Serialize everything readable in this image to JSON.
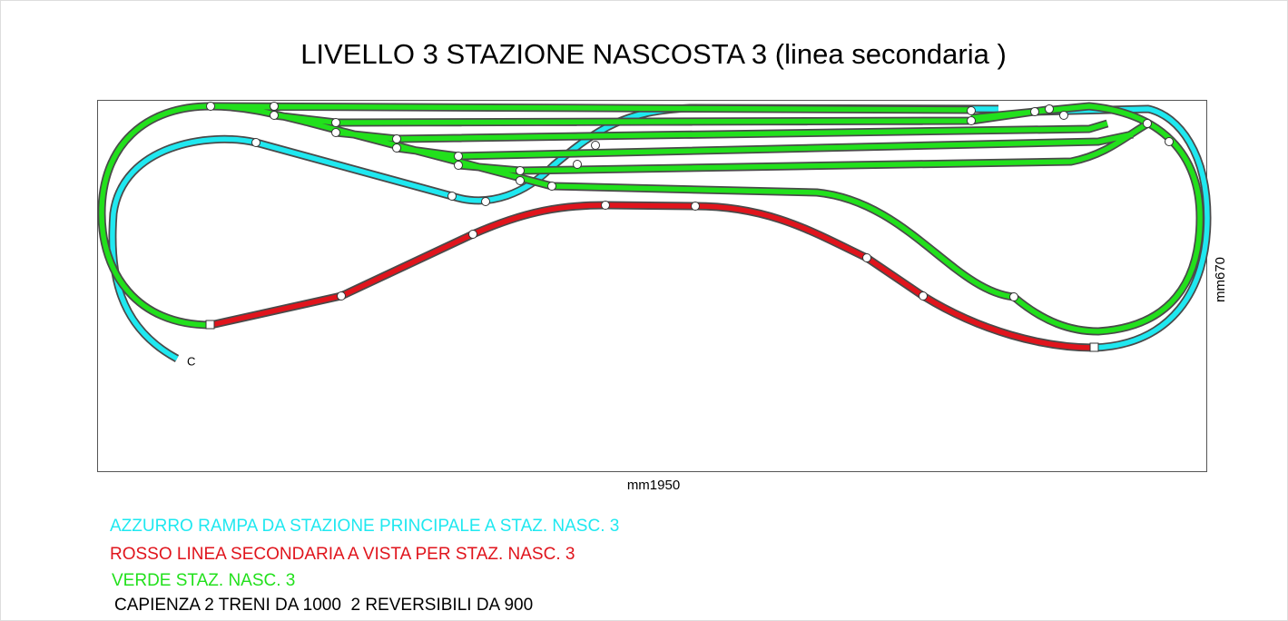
{
  "title": "LIVELLO 3 STAZIONE NASCOSTA 3 (linea secondaria )",
  "board": {
    "width_label": "mm1950",
    "height_label": "mm670",
    "end_label": "C"
  },
  "legend": [
    "AZZURRO RAMPA DA STAZIONE PRINCIPALE A STAZ. NASC. 3",
    "ROSSO LINEA SECONDARIA A VISTA PER STAZ. NASC. 3",
    "VERDE STAZ. NASC. 3"
  ],
  "note": "CAPIENZA 2 TRENI DA 1000  2 REVERSIBILI DA 900"
}
